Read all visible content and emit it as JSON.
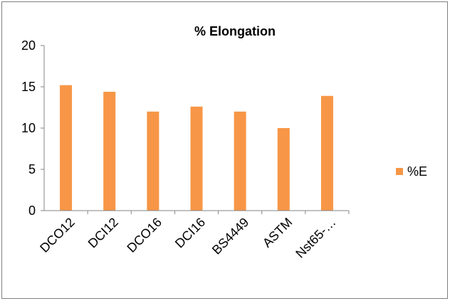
{
  "chart_data": {
    "type": "bar",
    "title": "% Elongation",
    "categories": [
      "DCO12",
      "DCI12",
      "DCO16",
      "DCI16",
      "BS4449",
      "ASTM",
      "Nst65-…"
    ],
    "series": [
      {
        "name": "%E",
        "color": "#f79646",
        "values": [
          15.2,
          14.4,
          12.0,
          12.6,
          12.0,
          10.0,
          13.9
        ]
      }
    ],
    "xlabel": "",
    "ylabel": "",
    "ylim": [
      0,
      20
    ],
    "yticks": [
      0,
      5,
      10,
      15,
      20
    ],
    "grid": false,
    "legend": "right"
  }
}
